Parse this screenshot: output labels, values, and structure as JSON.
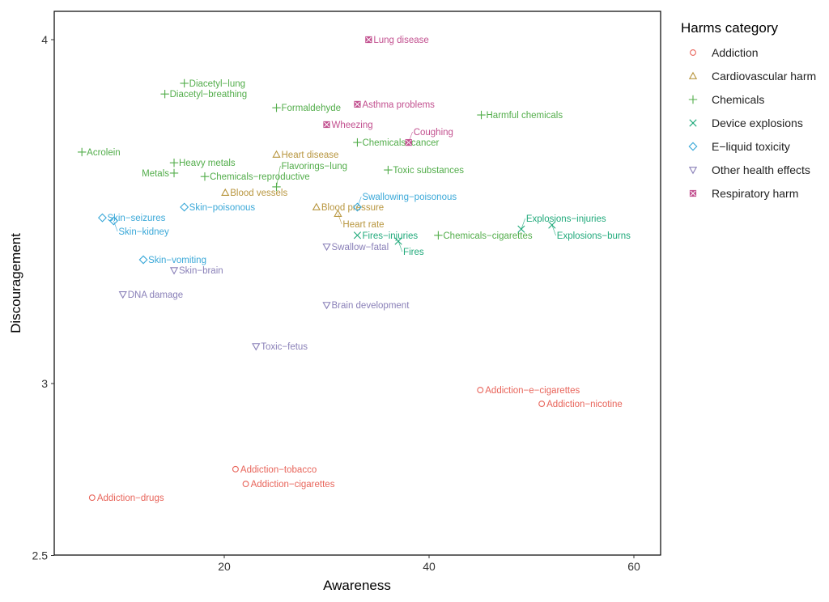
{
  "chart_data": {
    "type": "scatter",
    "title": "",
    "xlabel": "Awareness",
    "ylabel": "Discouragement",
    "xlim": [
      3.4,
      62.6
    ],
    "ylim": [
      2.5,
      4.08
    ],
    "xticks": [
      20,
      40,
      60
    ],
    "yticks": [
      2.5,
      3,
      4
    ],
    "grid": false,
    "legend": {
      "title": "Harms category",
      "placement": "right",
      "entries": [
        {
          "name": "Addiction",
          "shape": "circle",
          "color": "#E8645A"
        },
        {
          "name": "Cardiovascular harm",
          "shape": "triangle",
          "color": "#B8963F"
        },
        {
          "name": "Chemicals",
          "shape": "plus",
          "color": "#52AD4A"
        },
        {
          "name": "Device explosions",
          "shape": "cross",
          "color": "#1FA97A"
        },
        {
          "name": "E−liquid toxicity",
          "shape": "diamond",
          "color": "#3AA8D8"
        },
        {
          "name": "Other health effects",
          "shape": "triangle-down",
          "color": "#8A80B8"
        },
        {
          "name": "Respiratory  harm",
          "shape": "square-cross",
          "color": "#C2508F"
        }
      ]
    },
    "series": [
      {
        "name": "Addiction",
        "points": [
          {
            "label": "Addiction−drugs",
            "x": 7.1,
            "y": 2.668
          },
          {
            "label": "Addiction−tobacco",
            "x": 21.1,
            "y": 2.751
          },
          {
            "label": "Addiction−cigarettes",
            "x": 22.1,
            "y": 2.708
          },
          {
            "label": "Addiction−e−cigarettes",
            "x": 45.0,
            "y": 2.981
          },
          {
            "label": "Addiction−nicotine",
            "x": 51.0,
            "y": 2.941
          }
        ]
      },
      {
        "name": "Cardiovascular harm",
        "points": [
          {
            "label": "Heart disease",
            "x": 25.1,
            "y": 3.666
          },
          {
            "label": "Blood vessels",
            "x": 20.1,
            "y": 3.555
          },
          {
            "label": "Blood pressure",
            "x": 29.0,
            "y": 3.513
          },
          {
            "label": "Heart rate",
            "x": 31.1,
            "y": 3.494
          }
        ]
      },
      {
        "name": "Chemicals",
        "points": [
          {
            "label": "Diacetyl−lung",
            "x": 16.1,
            "y": 3.873
          },
          {
            "label": "Diacetyl−breathing",
            "x": 14.2,
            "y": 3.842
          },
          {
            "label": "Formaldehyde",
            "x": 25.1,
            "y": 3.802
          },
          {
            "label": "Acrolein",
            "x": 6.1,
            "y": 3.673
          },
          {
            "label": "Heavy metals",
            "x": 15.1,
            "y": 3.642
          },
          {
            "label": "Metals",
            "x": 15.1,
            "y": 3.612
          },
          {
            "label": "Chemicals−reproductive",
            "x": 18.1,
            "y": 3.602
          },
          {
            "label": "Flavorings−lung",
            "x": 25.1,
            "y": 3.572
          },
          {
            "label": "Chemicals−cancer",
            "x": 33.0,
            "y": 3.701
          },
          {
            "label": "Harmful chemicals",
            "x": 45.1,
            "y": 3.781
          },
          {
            "label": "Toxic substances",
            "x": 36.0,
            "y": 3.621
          },
          {
            "label": "Chemicals−cigarettes",
            "x": 40.9,
            "y": 3.431
          }
        ]
      },
      {
        "name": "Device explosions",
        "points": [
          {
            "label": "Fires−injuries",
            "x": 33.0,
            "y": 3.431
          },
          {
            "label": "Fires",
            "x": 37.0,
            "y": 3.414
          },
          {
            "label": "Explosions−injuries",
            "x": 49.0,
            "y": 3.449
          },
          {
            "label": "Explosions−burns",
            "x": 52.0,
            "y": 3.461
          }
        ]
      },
      {
        "name": "E−liquid toxicity",
        "points": [
          {
            "label": "Skin−poisonous",
            "x": 16.1,
            "y": 3.513
          },
          {
            "label": "Skin−seizures",
            "x": 8.1,
            "y": 3.482
          },
          {
            "label": "Skin−kidney",
            "x": 9.2,
            "y": 3.473
          },
          {
            "label": "Skin−vomiting",
            "x": 12.1,
            "y": 3.36
          },
          {
            "label": "Swallowing−poisonous",
            "x": 33.0,
            "y": 3.513
          }
        ]
      },
      {
        "name": "Other health effects",
        "points": [
          {
            "label": "Swallow−fatal",
            "x": 30.0,
            "y": 3.398
          },
          {
            "label": "Skin−brain",
            "x": 15.1,
            "y": 3.329
          },
          {
            "label": "DNA damage",
            "x": 10.1,
            "y": 3.259
          },
          {
            "label": "Brain development",
            "x": 30.0,
            "y": 3.228
          },
          {
            "label": "Toxic−fetus",
            "x": 23.1,
            "y": 3.108
          }
        ]
      },
      {
        "name": "Respiratory  harm",
        "points": [
          {
            "label": "Lung disease",
            "x": 34.1,
            "y": 4.0
          },
          {
            "label": "Asthma problems",
            "x": 33.0,
            "y": 3.812
          },
          {
            "label": "Wheezing",
            "x": 30.0,
            "y": 3.753
          },
          {
            "label": "Coughing",
            "x": 38.0,
            "y": 3.701
          }
        ]
      }
    ]
  }
}
